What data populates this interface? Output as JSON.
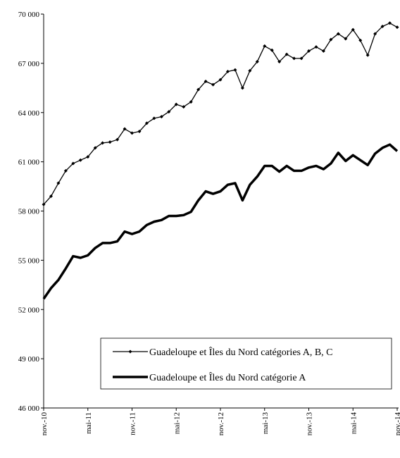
{
  "chart_data": {
    "type": "line",
    "categories": [
      "nov.-10",
      null,
      null,
      null,
      null,
      null,
      "mai-11",
      null,
      null,
      null,
      null,
      null,
      "nov.-11",
      null,
      null,
      null,
      null,
      null,
      "mai-12",
      null,
      null,
      null,
      null,
      null,
      "nov.-12",
      null,
      null,
      null,
      null,
      null,
      "mai-13",
      null,
      null,
      null,
      null,
      null,
      "nov.-13",
      null,
      null,
      null,
      null,
      null,
      "mai-14",
      null,
      null,
      null,
      null,
      null,
      "nov.-14"
    ],
    "series": [
      {
        "name": "Guadeloupe et Îles du Nord catégories A, B, C",
        "color": "#000000",
        "markers": true,
        "values": [
          58400,
          58900,
          59700,
          60450,
          60900,
          61100,
          61300,
          61850,
          62150,
          62200,
          62350,
          63000,
          62750,
          62850,
          63350,
          63650,
          63750,
          64050,
          64500,
          64350,
          64650,
          65400,
          65900,
          65700,
          66000,
          66500,
          66600,
          65500,
          66550,
          67100,
          68050,
          67800,
          67100,
          67550,
          67300,
          67300,
          67750,
          68000,
          67750,
          68450,
          68800,
          68500,
          69050,
          68400,
          67500,
          68800,
          69250,
          69450,
          69200
        ]
      },
      {
        "name": "Guadeloupe et Îles du Nord catégorie A",
        "color": "#000000",
        "markers": false,
        "values": [
          52650,
          53300,
          53800,
          54500,
          55250,
          55150,
          55300,
          55750,
          56050,
          56050,
          56150,
          56750,
          56600,
          56750,
          57150,
          57350,
          57450,
          57700,
          57700,
          57750,
          57950,
          58650,
          59200,
          59050,
          59200,
          59600,
          59700,
          58650,
          59600,
          60100,
          60750,
          60750,
          60400,
          60750,
          60450,
          60450,
          60650,
          60750,
          60550,
          60900,
          61550,
          61050,
          61400,
          61100,
          60800,
          61500,
          61850,
          62050,
          61650
        ]
      }
    ],
    "ylim": [
      46000,
      70000
    ],
    "yticks": [
      {
        "value": 46000,
        "label": "46 000"
      },
      {
        "value": 49000,
        "label": "49 000"
      },
      {
        "value": 52000,
        "label": "52 000"
      },
      {
        "value": 55000,
        "label": "55 000"
      },
      {
        "value": 58000,
        "label": "58 000"
      },
      {
        "value": 61000,
        "label": "61 000"
      },
      {
        "value": 64000,
        "label": "64 000"
      },
      {
        "value": 67000,
        "label": "67 000"
      },
      {
        "value": 70000,
        "label": "70 000"
      }
    ],
    "grid": false
  }
}
